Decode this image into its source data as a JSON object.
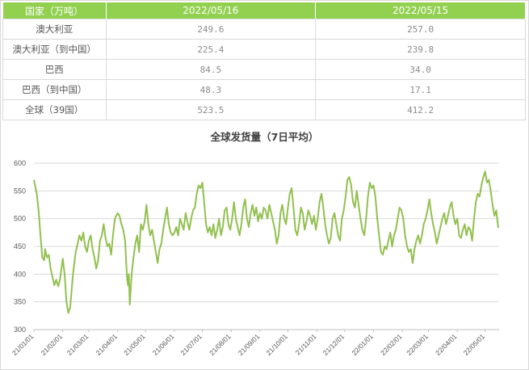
{
  "table": {
    "headers": [
      "国家（万吨）",
      "2022/05/16",
      "2022/05/15"
    ],
    "rows": [
      {
        "country": "澳大利亚",
        "v1": "249.6",
        "v2": "257.0"
      },
      {
        "country": "澳大利亚（到中国）",
        "v1": "225.4",
        "v2": "239.8"
      },
      {
        "country": "巴西",
        "v1": "84.5",
        "v2": "34.0"
      },
      {
        "country": "巴西（到中国）",
        "v1": "48.3",
        "v2": "17.1"
      },
      {
        "country": "全球（39国）",
        "v1": "523.5",
        "v2": "412.2"
      }
    ]
  },
  "colors": {
    "accent": "#92d050",
    "line": "#92c050",
    "grid": "#d9d9d9"
  },
  "chart_data": {
    "type": "line",
    "title": "全球发货量（7日平均）",
    "xlabel": "",
    "ylabel": "",
    "ylim": [
      300,
      600
    ],
    "yticks": [
      300,
      350,
      400,
      450,
      500,
      550,
      600
    ],
    "xticks": [
      "21/01/01",
      "21/02/01",
      "21/03/01",
      "21/04/01",
      "21/05/01",
      "21/06/01",
      "21/07/01",
      "21/08/01",
      "21/09/01",
      "21/10/01",
      "21/11/01",
      "21/12/01",
      "22/01/01",
      "22/02/01",
      "22/03/01",
      "22/04/01",
      "22/05/01"
    ],
    "grid": true,
    "series": [
      {
        "name": "",
        "x_start": "2021-01-01",
        "x_end": "2022-05-16",
        "points": [
          [
            "2021-01-01",
            570
          ],
          [
            "2021-01-04",
            545
          ],
          [
            "2021-01-06",
            515
          ],
          [
            "2021-01-08",
            470
          ],
          [
            "2021-01-10",
            430
          ],
          [
            "2021-01-12",
            425
          ],
          [
            "2021-01-13",
            445
          ],
          [
            "2021-01-15",
            430
          ],
          [
            "2021-01-17",
            435
          ],
          [
            "2021-01-19",
            410
          ],
          [
            "2021-01-21",
            395
          ],
          [
            "2021-01-23",
            380
          ],
          [
            "2021-01-25",
            390
          ],
          [
            "2021-01-27",
            378
          ],
          [
            "2021-01-29",
            390
          ],
          [
            "2021-02-01",
            428
          ],
          [
            "2021-02-03",
            400
          ],
          [
            "2021-02-05",
            350
          ],
          [
            "2021-02-07",
            330
          ],
          [
            "2021-02-09",
            340
          ],
          [
            "2021-02-12",
            400
          ],
          [
            "2021-02-15",
            440
          ],
          [
            "2021-02-17",
            455
          ],
          [
            "2021-02-19",
            470
          ],
          [
            "2021-02-21",
            460
          ],
          [
            "2021-02-23",
            475
          ],
          [
            "2021-02-25",
            450
          ],
          [
            "2021-02-27",
            440
          ],
          [
            "2021-03-01",
            460
          ],
          [
            "2021-03-03",
            470
          ],
          [
            "2021-03-05",
            445
          ],
          [
            "2021-03-07",
            430
          ],
          [
            "2021-03-09",
            410
          ],
          [
            "2021-03-11",
            425
          ],
          [
            "2021-03-13",
            460
          ],
          [
            "2021-03-15",
            470
          ],
          [
            "2021-03-17",
            490
          ],
          [
            "2021-03-19",
            465
          ],
          [
            "2021-03-21",
            450
          ],
          [
            "2021-03-23",
            455
          ],
          [
            "2021-03-25",
            435
          ],
          [
            "2021-03-27",
            470
          ],
          [
            "2021-03-29",
            500
          ],
          [
            "2021-04-01",
            510
          ],
          [
            "2021-04-03",
            505
          ],
          [
            "2021-04-05",
            490
          ],
          [
            "2021-04-07",
            480
          ],
          [
            "2021-04-09",
            460
          ],
          [
            "2021-04-11",
            395
          ],
          [
            "2021-04-12",
            380
          ],
          [
            "2021-04-13",
            400
          ],
          [
            "2021-04-14",
            345
          ],
          [
            "2021-04-16",
            400
          ],
          [
            "2021-04-18",
            430
          ],
          [
            "2021-04-20",
            455
          ],
          [
            "2021-04-22",
            470
          ],
          [
            "2021-04-24",
            440
          ],
          [
            "2021-04-26",
            490
          ],
          [
            "2021-04-28",
            480
          ],
          [
            "2021-04-30",
            495
          ],
          [
            "2021-05-02",
            525
          ],
          [
            "2021-05-04",
            490
          ],
          [
            "2021-05-06",
            470
          ],
          [
            "2021-05-08",
            480
          ],
          [
            "2021-05-10",
            460
          ],
          [
            "2021-05-12",
            440
          ],
          [
            "2021-05-14",
            420
          ],
          [
            "2021-05-16",
            445
          ],
          [
            "2021-05-18",
            455
          ],
          [
            "2021-05-20",
            480
          ],
          [
            "2021-05-22",
            500
          ],
          [
            "2021-05-24",
            520
          ],
          [
            "2021-05-26",
            490
          ],
          [
            "2021-05-28",
            475
          ],
          [
            "2021-05-30",
            470
          ],
          [
            "2021-06-01",
            475
          ],
          [
            "2021-06-03",
            485
          ],
          [
            "2021-06-05",
            470
          ],
          [
            "2021-06-07",
            500
          ],
          [
            "2021-06-09",
            490
          ],
          [
            "2021-06-11",
            480
          ],
          [
            "2021-06-13",
            510
          ],
          [
            "2021-06-15",
            495
          ],
          [
            "2021-06-17",
            480
          ],
          [
            "2021-06-19",
            500
          ],
          [
            "2021-06-21",
            515
          ],
          [
            "2021-06-23",
            520
          ],
          [
            "2021-06-25",
            545
          ],
          [
            "2021-06-27",
            560
          ],
          [
            "2021-06-29",
            555
          ],
          [
            "2021-07-01",
            565
          ],
          [
            "2021-07-03",
            530
          ],
          [
            "2021-07-05",
            490
          ],
          [
            "2021-07-07",
            475
          ],
          [
            "2021-07-09",
            485
          ],
          [
            "2021-07-11",
            470
          ],
          [
            "2021-07-13",
            490
          ],
          [
            "2021-07-15",
            465
          ],
          [
            "2021-07-17",
            480
          ],
          [
            "2021-07-19",
            500
          ],
          [
            "2021-07-21",
            470
          ],
          [
            "2021-07-23",
            485
          ],
          [
            "2021-07-25",
            515
          ],
          [
            "2021-07-27",
            520
          ],
          [
            "2021-07-29",
            490
          ],
          [
            "2021-07-31",
            480
          ],
          [
            "2021-08-02",
            500
          ],
          [
            "2021-08-04",
            530
          ],
          [
            "2021-08-06",
            500
          ],
          [
            "2021-08-08",
            485
          ],
          [
            "2021-08-10",
            470
          ],
          [
            "2021-08-12",
            490
          ],
          [
            "2021-08-14",
            520
          ],
          [
            "2021-08-16",
            535
          ],
          [
            "2021-08-18",
            500
          ],
          [
            "2021-08-20",
            485
          ],
          [
            "2021-08-22",
            510
          ],
          [
            "2021-08-24",
            525
          ],
          [
            "2021-08-26",
            505
          ],
          [
            "2021-08-28",
            520
          ],
          [
            "2021-08-30",
            495
          ],
          [
            "2021-09-01",
            510
          ],
          [
            "2021-09-03",
            500
          ],
          [
            "2021-09-05",
            520
          ],
          [
            "2021-09-07",
            515
          ],
          [
            "2021-09-09",
            500
          ],
          [
            "2021-09-11",
            525
          ],
          [
            "2021-09-13",
            510
          ],
          [
            "2021-09-15",
            495
          ],
          [
            "2021-09-17",
            480
          ],
          [
            "2021-09-19",
            455
          ],
          [
            "2021-09-21",
            470
          ],
          [
            "2021-09-23",
            510
          ],
          [
            "2021-09-25",
            525
          ],
          [
            "2021-09-27",
            500
          ],
          [
            "2021-09-29",
            490
          ],
          [
            "2021-10-01",
            520
          ],
          [
            "2021-10-03",
            545
          ],
          [
            "2021-10-05",
            555
          ],
          [
            "2021-10-07",
            520
          ],
          [
            "2021-10-09",
            480
          ],
          [
            "2021-10-11",
            470
          ],
          [
            "2021-10-13",
            490
          ],
          [
            "2021-10-15",
            520
          ],
          [
            "2021-10-17",
            510
          ],
          [
            "2021-10-19",
            480
          ],
          [
            "2021-10-21",
            495
          ],
          [
            "2021-10-23",
            515
          ],
          [
            "2021-10-25",
            505
          ],
          [
            "2021-10-27",
            490
          ],
          [
            "2021-10-29",
            505
          ],
          [
            "2021-10-31",
            480
          ],
          [
            "2021-11-02",
            500
          ],
          [
            "2021-11-04",
            530
          ],
          [
            "2021-11-06",
            545
          ],
          [
            "2021-11-08",
            520
          ],
          [
            "2021-11-10",
            490
          ],
          [
            "2021-11-12",
            470
          ],
          [
            "2021-11-14",
            455
          ],
          [
            "2021-11-16",
            465
          ],
          [
            "2021-11-18",
            500
          ],
          [
            "2021-11-20",
            510
          ],
          [
            "2021-11-22",
            490
          ],
          [
            "2021-11-24",
            470
          ],
          [
            "2021-11-26",
            460
          ],
          [
            "2021-11-28",
            500
          ],
          [
            "2021-11-30",
            515
          ],
          [
            "2021-12-02",
            540
          ],
          [
            "2021-12-04",
            570
          ],
          [
            "2021-12-06",
            575
          ],
          [
            "2021-12-08",
            560
          ],
          [
            "2021-12-10",
            530
          ],
          [
            "2021-12-12",
            520
          ],
          [
            "2021-12-14",
            550
          ],
          [
            "2021-12-16",
            525
          ],
          [
            "2021-12-18",
            500
          ],
          [
            "2021-12-20",
            480
          ],
          [
            "2021-12-22",
            470
          ],
          [
            "2021-12-24",
            500
          ],
          [
            "2021-12-26",
            540
          ],
          [
            "2021-12-28",
            565
          ],
          [
            "2021-12-30",
            555
          ],
          [
            "2022-01-01",
            560
          ],
          [
            "2022-01-03",
            540
          ],
          [
            "2022-01-05",
            500
          ],
          [
            "2022-01-07",
            470
          ],
          [
            "2022-01-09",
            440
          ],
          [
            "2022-01-11",
            435
          ],
          [
            "2022-01-13",
            450
          ],
          [
            "2022-01-15",
            445
          ],
          [
            "2022-01-17",
            460
          ],
          [
            "2022-01-19",
            475
          ],
          [
            "2022-01-21",
            450
          ],
          [
            "2022-01-23",
            470
          ],
          [
            "2022-01-25",
            480
          ],
          [
            "2022-01-27",
            500
          ],
          [
            "2022-01-29",
            520
          ],
          [
            "2022-01-31",
            515
          ],
          [
            "2022-02-02",
            500
          ],
          [
            "2022-02-04",
            470
          ],
          [
            "2022-02-06",
            450
          ],
          [
            "2022-02-08",
            440
          ],
          [
            "2022-02-10",
            445
          ],
          [
            "2022-02-12",
            420
          ],
          [
            "2022-02-14",
            445
          ],
          [
            "2022-02-16",
            460
          ],
          [
            "2022-02-18",
            470
          ],
          [
            "2022-02-20",
            455
          ],
          [
            "2022-02-22",
            470
          ],
          [
            "2022-02-24",
            490
          ],
          [
            "2022-02-26",
            500
          ],
          [
            "2022-02-28",
            515
          ],
          [
            "2022-03-02",
            535
          ],
          [
            "2022-03-04",
            510
          ],
          [
            "2022-03-06",
            490
          ],
          [
            "2022-03-08",
            475
          ],
          [
            "2022-03-10",
            455
          ],
          [
            "2022-03-12",
            470
          ],
          [
            "2022-03-14",
            485
          ],
          [
            "2022-03-16",
            500
          ],
          [
            "2022-03-18",
            510
          ],
          [
            "2022-03-20",
            490
          ],
          [
            "2022-03-22",
            505
          ],
          [
            "2022-03-24",
            520
          ],
          [
            "2022-03-26",
            530
          ],
          [
            "2022-03-28",
            505
          ],
          [
            "2022-03-30",
            490
          ],
          [
            "2022-04-01",
            500
          ],
          [
            "2022-04-03",
            470
          ],
          [
            "2022-04-05",
            465
          ],
          [
            "2022-04-07",
            480
          ],
          [
            "2022-04-09",
            490
          ],
          [
            "2022-04-11",
            470
          ],
          [
            "2022-04-13",
            485
          ],
          [
            "2022-04-15",
            480
          ],
          [
            "2022-04-17",
            460
          ],
          [
            "2022-04-19",
            500
          ],
          [
            "2022-04-21",
            530
          ],
          [
            "2022-04-23",
            545
          ],
          [
            "2022-04-25",
            540
          ],
          [
            "2022-04-27",
            560
          ],
          [
            "2022-04-29",
            575
          ],
          [
            "2022-05-01",
            585
          ],
          [
            "2022-05-03",
            565
          ],
          [
            "2022-05-05",
            570
          ],
          [
            "2022-05-07",
            550
          ],
          [
            "2022-05-09",
            525
          ],
          [
            "2022-05-11",
            505
          ],
          [
            "2022-05-13",
            515
          ],
          [
            "2022-05-15",
            485
          ],
          [
            "2022-05-16",
            485
          ]
        ]
      }
    ]
  }
}
